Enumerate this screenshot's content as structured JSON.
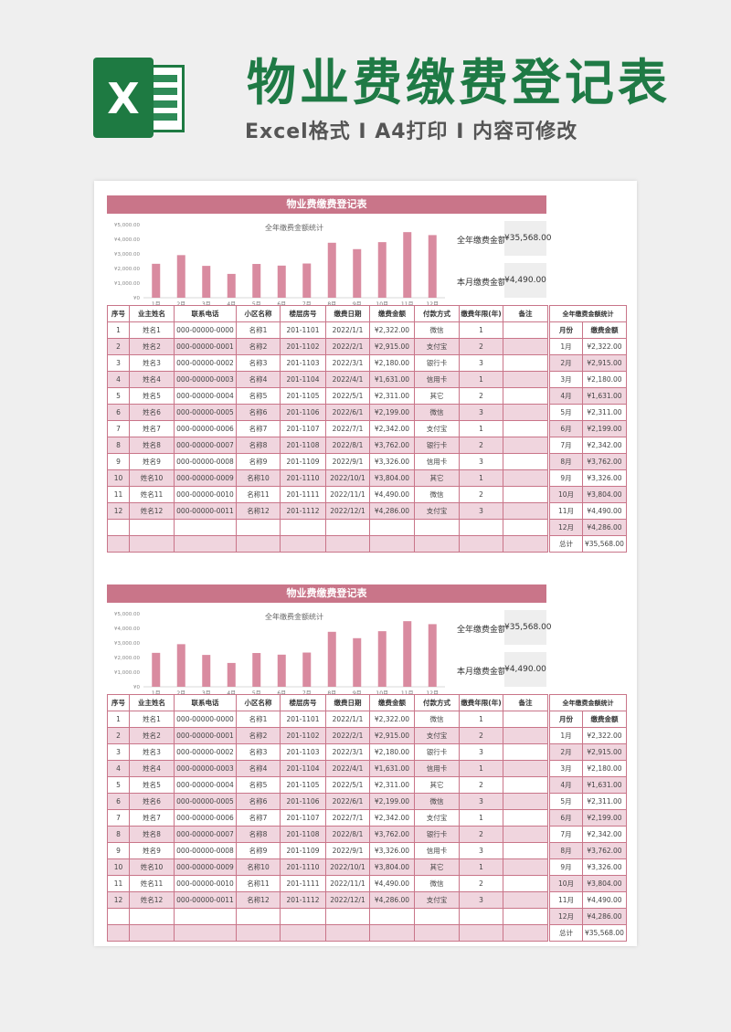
{
  "header": {
    "title": "物业费缴费登记表",
    "subtitle": "Excel格式 I A4打印 I 内容可修改",
    "logo_letter": "X"
  },
  "sheet": {
    "title": "物业费缴费登记表",
    "annual_label": "全年缴费金额",
    "annual_value": "¥35,568.00",
    "month_label": "本月缴费金额",
    "month_value": "¥4,490.00",
    "columns": [
      "序号",
      "业主姓名",
      "联系电话",
      "小区名称",
      "楼层房号",
      "缴费日期",
      "缴费金额",
      "付款方式",
      "缴费年限(年)",
      "备注"
    ],
    "rows": [
      [
        "1",
        "姓名1",
        "000-00000-0000",
        "名称1",
        "201-1101",
        "2022/1/1",
        "¥2,322.00",
        "微信",
        "1",
        ""
      ],
      [
        "2",
        "姓名2",
        "000-00000-0001",
        "名称2",
        "201-1102",
        "2022/2/1",
        "¥2,915.00",
        "支付宝",
        "2",
        ""
      ],
      [
        "3",
        "姓名3",
        "000-00000-0002",
        "名称3",
        "201-1103",
        "2022/3/1",
        "¥2,180.00",
        "银行卡",
        "3",
        ""
      ],
      [
        "4",
        "姓名4",
        "000-00000-0003",
        "名称4",
        "201-1104",
        "2022/4/1",
        "¥1,631.00",
        "信用卡",
        "1",
        ""
      ],
      [
        "5",
        "姓名5",
        "000-00000-0004",
        "名称5",
        "201-1105",
        "2022/5/1",
        "¥2,311.00",
        "其它",
        "2",
        ""
      ],
      [
        "6",
        "姓名6",
        "000-00000-0005",
        "名称6",
        "201-1106",
        "2022/6/1",
        "¥2,199.00",
        "微信",
        "3",
        ""
      ],
      [
        "7",
        "姓名7",
        "000-00000-0006",
        "名称7",
        "201-1107",
        "2022/7/1",
        "¥2,342.00",
        "支付宝",
        "1",
        ""
      ],
      [
        "8",
        "姓名8",
        "000-00000-0007",
        "名称8",
        "201-1108",
        "2022/8/1",
        "¥3,762.00",
        "银行卡",
        "2",
        ""
      ],
      [
        "9",
        "姓名9",
        "000-00000-0008",
        "名称9",
        "201-1109",
        "2022/9/1",
        "¥3,326.00",
        "信用卡",
        "3",
        ""
      ],
      [
        "10",
        "姓名10",
        "000-00000-0009",
        "名称10",
        "201-1110",
        "2022/10/1",
        "¥3,804.00",
        "其它",
        "1",
        ""
      ],
      [
        "11",
        "姓名11",
        "000-00000-0010",
        "名称11",
        "201-1111",
        "2022/11/1",
        "¥4,490.00",
        "微信",
        "2",
        ""
      ],
      [
        "12",
        "姓名12",
        "000-00000-0011",
        "名称12",
        "201-1112",
        "2022/12/1",
        "¥4,286.00",
        "支付宝",
        "3",
        ""
      ]
    ],
    "side_title": "全年缴费金额统计",
    "side_columns": [
      "月份",
      "缴费金额"
    ],
    "side_rows": [
      [
        "1月",
        "¥2,322.00"
      ],
      [
        "2月",
        "¥2,915.00"
      ],
      [
        "3月",
        "¥2,180.00"
      ],
      [
        "4月",
        "¥1,631.00"
      ],
      [
        "5月",
        "¥2,311.00"
      ],
      [
        "6月",
        "¥2,199.00"
      ],
      [
        "7月",
        "¥2,342.00"
      ],
      [
        "8月",
        "¥3,762.00"
      ],
      [
        "9月",
        "¥3,326.00"
      ],
      [
        "10月",
        "¥3,804.00"
      ],
      [
        "11月",
        "¥4,490.00"
      ],
      [
        "12月",
        "¥4,286.00"
      ]
    ],
    "side_total_label": "总计",
    "side_total_value": "¥35,568.00"
  },
  "chart_data": {
    "type": "bar",
    "title": "全年缴费金额统计",
    "categories": [
      "1月",
      "2月",
      "3月",
      "4月",
      "5月",
      "6月",
      "7月",
      "8月",
      "9月",
      "10月",
      "11月",
      "12月"
    ],
    "values": [
      2322,
      2915,
      2180,
      1631,
      2311,
      2199,
      2342,
      3762,
      3326,
      3804,
      4490,
      4286
    ],
    "ylim": [
      0,
      5000
    ],
    "yticks": [
      "¥0",
      "¥1,000.00",
      "¥2,000.00",
      "¥3,000.00",
      "¥4,000.00",
      "¥5,000.00"
    ],
    "grid": false,
    "color": "#d98ba0"
  },
  "colors": {
    "accent": "#c97589",
    "row_pink": "#f0d5de",
    "brand_green": "#1f7a45"
  }
}
